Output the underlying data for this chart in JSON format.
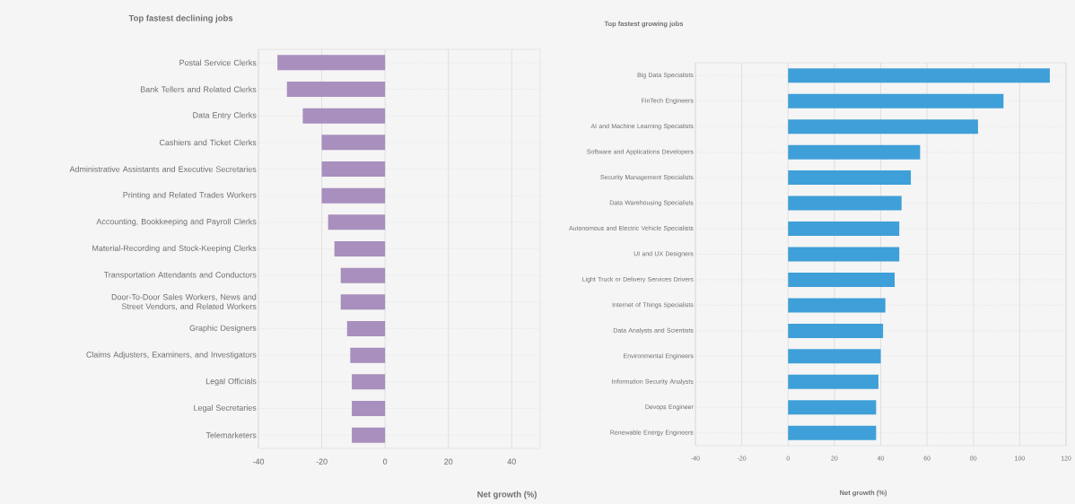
{
  "chart_data": [
    {
      "type": "bar",
      "orientation": "horizontal",
      "title": "Top fastest declining jobs",
      "xlabel": "Net growth (%)",
      "categories": [
        "Postal Service Clerks",
        "Bank Tellers and Related Clerks",
        "Data Entry Clerks",
        "Cashiers and Ticket Clerks",
        "Administrative Assistants and Executive Secretaries",
        "Printing and Related Trades Workers",
        "Accounting, Bookkeeping and Payroll Clerks",
        "Material-Recording and Stock-Keeping Clerks",
        "Transportation Attendants and Conductors",
        "Door-To-Door Sales Workers, News and Street Vendors, and Related Workers",
        "Graphic Designers",
        "Claims Adjusters, Examiners, and Investigators",
        "Legal Officials",
        "Legal Secretaries",
        "Telemarketers"
      ],
      "values": [
        -34,
        -31,
        -26,
        -20,
        -20,
        -20,
        -18,
        -16,
        -14,
        -14,
        -12,
        -11,
        -10.5,
        -10.5,
        -10.5
      ],
      "color": "#a88fbd",
      "xlim": [
        -40,
        49
      ],
      "xticks": [
        -40,
        -20,
        0,
        20,
        40
      ],
      "grid": true
    },
    {
      "type": "bar",
      "orientation": "horizontal",
      "title": "Top fastest growing jobs",
      "xlabel": "Net growth (%)",
      "categories": [
        "Big Data Specialists",
        "FinTech Engineers",
        "AI and Machine Learning Specialists",
        "Software and Applications Developers",
        "Security Management Specialists",
        "Data Warehousing Specialists",
        "Autonomous and Electric Vehicle Specialists",
        "UI and UX Designers",
        "Light Truck or Delivery Services Drivers",
        "Internet of Things Specialists",
        "Data Analysts and Scientists",
        "Environmental Engineers",
        "Information Security Analysts",
        "Devops Engineer",
        "Renewable Energy Engineers"
      ],
      "values": [
        113,
        93,
        82,
        57,
        53,
        49,
        48,
        48,
        46,
        42,
        41,
        40,
        39,
        38,
        38
      ],
      "color": "#3f9fd8",
      "xlim": [
        -40,
        120
      ],
      "xticks": [
        -40,
        -20,
        0,
        20,
        40,
        60,
        80,
        100,
        120
      ],
      "grid": true
    }
  ]
}
